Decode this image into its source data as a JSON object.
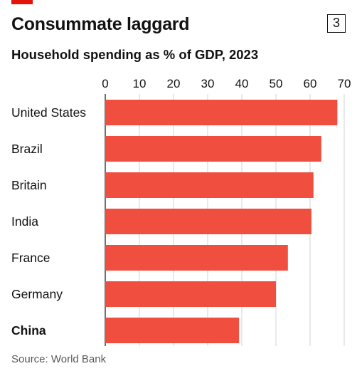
{
  "header": {
    "title": "Consummate laggard",
    "chart_number": "3",
    "subtitle": "Household spending as % of GDP, 2023"
  },
  "source": "Source: World Bank",
  "colors": {
    "bar": "#f04e3e",
    "accent": "#e3120b",
    "gridline": "#d3d3d3"
  },
  "chart_data": {
    "type": "bar",
    "orientation": "horizontal",
    "title": "Household spending as % of GDP, 2023",
    "xlabel": "",
    "ylabel": "",
    "categories": [
      "United States",
      "Brazil",
      "Britain",
      "India",
      "France",
      "Germany",
      "China"
    ],
    "values": [
      68,
      63.3,
      61,
      60.4,
      53.5,
      50,
      39.2
    ],
    "highlighted_category": "China",
    "xlim": [
      0,
      70
    ],
    "xticks": [
      0,
      10,
      20,
      30,
      40,
      50,
      60,
      70
    ],
    "grid": true
  }
}
